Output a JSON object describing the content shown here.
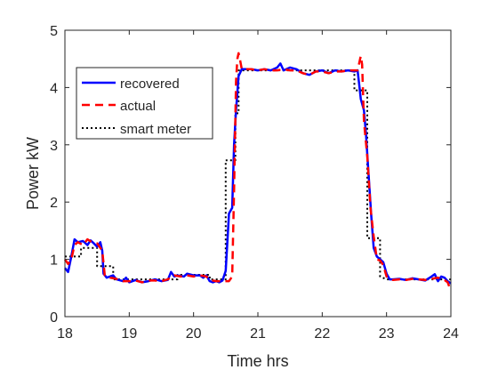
{
  "chart_data": {
    "type": "line",
    "xlabel": "Time hrs",
    "ylabel": "Power kW",
    "xlim": [
      18,
      24
    ],
    "ylim": [
      0,
      5
    ],
    "xticks": [
      "18",
      "19",
      "20",
      "21",
      "22",
      "23",
      "24"
    ],
    "yticks": [
      "0",
      "1",
      "2",
      "3",
      "4",
      "5"
    ],
    "grid": false,
    "legend_position": "left, upper-middle",
    "series": [
      {
        "name": "recovered",
        "color": "#0000ff",
        "style": "solid",
        "points": [
          [
            18.0,
            0.85
          ],
          [
            18.05,
            0.78
          ],
          [
            18.1,
            1.05
          ],
          [
            18.15,
            1.35
          ],
          [
            18.2,
            1.3
          ],
          [
            18.28,
            1.32
          ],
          [
            18.35,
            1.25
          ],
          [
            18.4,
            1.33
          ],
          [
            18.45,
            1.28
          ],
          [
            18.5,
            1.22
          ],
          [
            18.55,
            1.3
          ],
          [
            18.58,
            1.15
          ],
          [
            18.6,
            0.75
          ],
          [
            18.65,
            0.68
          ],
          [
            18.75,
            0.72
          ],
          [
            18.8,
            0.65
          ],
          [
            18.9,
            0.62
          ],
          [
            18.95,
            0.68
          ],
          [
            19.0,
            0.6
          ],
          [
            19.1,
            0.64
          ],
          [
            19.2,
            0.6
          ],
          [
            19.3,
            0.62
          ],
          [
            19.4,
            0.65
          ],
          [
            19.5,
            0.62
          ],
          [
            19.6,
            0.64
          ],
          [
            19.65,
            0.78
          ],
          [
            19.7,
            0.7
          ],
          [
            19.75,
            0.72
          ],
          [
            19.85,
            0.7
          ],
          [
            19.9,
            0.75
          ],
          [
            20.0,
            0.72
          ],
          [
            20.1,
            0.72
          ],
          [
            20.15,
            0.68
          ],
          [
            20.2,
            0.72
          ],
          [
            20.25,
            0.62
          ],
          [
            20.3,
            0.6
          ],
          [
            20.35,
            0.62
          ],
          [
            20.4,
            0.6
          ],
          [
            20.45,
            0.63
          ],
          [
            20.5,
            0.8
          ],
          [
            20.55,
            1.8
          ],
          [
            20.6,
            1.9
          ],
          [
            20.63,
            3.0
          ],
          [
            20.66,
            3.6
          ],
          [
            20.7,
            4.2
          ],
          [
            20.75,
            4.32
          ],
          [
            20.9,
            4.32
          ],
          [
            21.0,
            4.3
          ],
          [
            21.1,
            4.32
          ],
          [
            21.2,
            4.3
          ],
          [
            21.3,
            4.35
          ],
          [
            21.35,
            4.42
          ],
          [
            21.4,
            4.3
          ],
          [
            21.5,
            4.35
          ],
          [
            21.6,
            4.32
          ],
          [
            21.7,
            4.25
          ],
          [
            21.8,
            4.22
          ],
          [
            21.9,
            4.28
          ],
          [
            22.0,
            4.3
          ],
          [
            22.1,
            4.25
          ],
          [
            22.2,
            4.3
          ],
          [
            22.3,
            4.28
          ],
          [
            22.4,
            4.3
          ],
          [
            22.5,
            4.28
          ],
          [
            22.55,
            4.3
          ],
          [
            22.58,
            4.0
          ],
          [
            22.6,
            3.8
          ],
          [
            22.65,
            3.6
          ],
          [
            22.68,
            3.2
          ],
          [
            22.72,
            2.5
          ],
          [
            22.76,
            1.8
          ],
          [
            22.8,
            1.2
          ],
          [
            22.85,
            1.05
          ],
          [
            22.9,
            1.0
          ],
          [
            22.95,
            0.95
          ],
          [
            23.0,
            0.75
          ],
          [
            23.05,
            0.65
          ],
          [
            23.1,
            0.65
          ],
          [
            23.2,
            0.66
          ],
          [
            23.3,
            0.64
          ],
          [
            23.4,
            0.67
          ],
          [
            23.5,
            0.65
          ],
          [
            23.6,
            0.63
          ],
          [
            23.7,
            0.7
          ],
          [
            23.75,
            0.74
          ],
          [
            23.8,
            0.62
          ],
          [
            23.85,
            0.7
          ],
          [
            23.9,
            0.68
          ],
          [
            23.95,
            0.62
          ],
          [
            24.0,
            0.58
          ]
        ]
      },
      {
        "name": "actual",
        "color": "#ff0000",
        "style": "dashed",
        "points": [
          [
            18.0,
            1.0
          ],
          [
            18.05,
            0.92
          ],
          [
            18.1,
            1.0
          ],
          [
            18.15,
            1.25
          ],
          [
            18.2,
            1.3
          ],
          [
            18.28,
            1.25
          ],
          [
            18.35,
            1.35
          ],
          [
            18.42,
            1.3
          ],
          [
            18.5,
            1.28
          ],
          [
            18.55,
            1.2
          ],
          [
            18.58,
            1.15
          ],
          [
            18.62,
            0.72
          ],
          [
            18.7,
            0.68
          ],
          [
            18.8,
            0.66
          ],
          [
            18.9,
            0.62
          ],
          [
            19.0,
            0.62
          ],
          [
            19.1,
            0.63
          ],
          [
            19.2,
            0.6
          ],
          [
            19.3,
            0.63
          ],
          [
            19.4,
            0.63
          ],
          [
            19.5,
            0.62
          ],
          [
            19.6,
            0.65
          ],
          [
            19.7,
            0.72
          ],
          [
            19.8,
            0.7
          ],
          [
            19.9,
            0.72
          ],
          [
            20.0,
            0.7
          ],
          [
            20.1,
            0.72
          ],
          [
            20.2,
            0.7
          ],
          [
            20.25,
            0.64
          ],
          [
            20.35,
            0.62
          ],
          [
            20.45,
            0.62
          ],
          [
            20.55,
            0.62
          ],
          [
            20.6,
            0.7
          ],
          [
            20.63,
            2.2
          ],
          [
            20.66,
            4.1
          ],
          [
            20.68,
            4.5
          ],
          [
            20.7,
            4.6
          ],
          [
            20.72,
            4.5
          ],
          [
            20.75,
            4.32
          ],
          [
            20.9,
            4.32
          ],
          [
            21.0,
            4.3
          ],
          [
            21.1,
            4.32
          ],
          [
            21.2,
            4.3
          ],
          [
            21.3,
            4.3
          ],
          [
            21.4,
            4.32
          ],
          [
            21.5,
            4.3
          ],
          [
            21.6,
            4.3
          ],
          [
            21.7,
            4.25
          ],
          [
            21.8,
            4.22
          ],
          [
            21.9,
            4.28
          ],
          [
            22.0,
            4.28
          ],
          [
            22.1,
            4.25
          ],
          [
            22.2,
            4.28
          ],
          [
            22.3,
            4.28
          ],
          [
            22.4,
            4.3
          ],
          [
            22.5,
            4.3
          ],
          [
            22.55,
            4.3
          ],
          [
            22.6,
            4.55
          ],
          [
            22.62,
            4.4
          ],
          [
            22.65,
            3.4
          ],
          [
            22.7,
            2.8
          ],
          [
            22.75,
            1.9
          ],
          [
            22.8,
            1.4
          ],
          [
            22.85,
            1.0
          ],
          [
            22.9,
            0.98
          ],
          [
            22.95,
            0.9
          ],
          [
            23.0,
            0.7
          ],
          [
            23.1,
            0.64
          ],
          [
            23.2,
            0.65
          ],
          [
            23.3,
            0.64
          ],
          [
            23.4,
            0.66
          ],
          [
            23.5,
            0.65
          ],
          [
            23.6,
            0.64
          ],
          [
            23.7,
            0.66
          ],
          [
            23.8,
            0.68
          ],
          [
            23.9,
            0.64
          ],
          [
            23.95,
            0.6
          ],
          [
            24.0,
            0.45
          ]
        ]
      },
      {
        "name": "smart meter",
        "color": "#000000",
        "style": "dotted",
        "points": [
          [
            18.0,
            1.05
          ],
          [
            18.25,
            1.05
          ],
          [
            18.25,
            1.2
          ],
          [
            18.5,
            1.2
          ],
          [
            18.5,
            0.88
          ],
          [
            18.75,
            0.88
          ],
          [
            18.75,
            0.65
          ],
          [
            19.0,
            0.65
          ],
          [
            19.25,
            0.65
          ],
          [
            19.5,
            0.65
          ],
          [
            19.75,
            0.65
          ],
          [
            19.75,
            0.73
          ],
          [
            20.0,
            0.73
          ],
          [
            20.25,
            0.73
          ],
          [
            20.25,
            0.65
          ],
          [
            20.5,
            0.65
          ],
          [
            20.5,
            2.73
          ],
          [
            20.65,
            2.73
          ],
          [
            20.65,
            3.55
          ],
          [
            20.7,
            3.55
          ],
          [
            20.7,
            4.3
          ],
          [
            21.0,
            4.3
          ],
          [
            22.5,
            4.3
          ],
          [
            22.5,
            3.95
          ],
          [
            22.7,
            3.95
          ],
          [
            22.7,
            1.37
          ],
          [
            22.9,
            1.37
          ],
          [
            22.9,
            0.7
          ],
          [
            23.0,
            0.65
          ],
          [
            24.0,
            0.65
          ]
        ]
      }
    ]
  }
}
